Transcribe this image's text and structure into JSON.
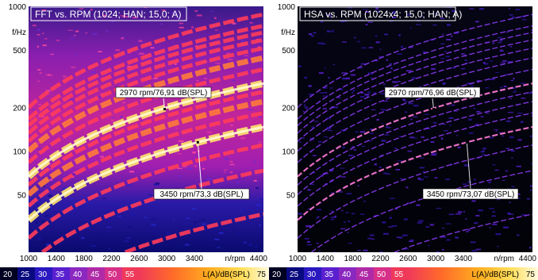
{
  "chart_data": [
    {
      "type": "heatmap",
      "title": "FFT vs. RPM (1024; HAN; 15,0; A)",
      "ylabel": "f/Hz",
      "xlabel": "n/rpm",
      "x_ticks": [
        1000,
        1400,
        1800,
        2200,
        2600,
        3000,
        3400,
        4400
      ],
      "y_ticks": [
        1000,
        500,
        200,
        100,
        50
      ],
      "xlim": [
        1000,
        4400
      ],
      "ylim": [
        20,
        1000
      ],
      "y_scale": "log",
      "annotations": [
        {
          "text": "2970 rpm/76,91 dB(SPL)",
          "x": 2970,
          "y": 195
        },
        {
          "text": "3450 rpm/73,3 dB(SPL)",
          "x": 3450,
          "y": 115
        }
      ],
      "colorbar": {
        "ticks": [
          "20",
          "25",
          "30",
          "35",
          "40",
          "45",
          "50",
          "55"
        ],
        "label": "L(A)/dB(SPL)",
        "last": "75"
      },
      "style": "fft"
    },
    {
      "type": "heatmap",
      "title": "HSA vs. RPM (1024x4; 15,0; HAN; A)",
      "ylabel": "f/Hz",
      "xlabel": "n/rpm",
      "x_ticks": [
        1000,
        1400,
        1800,
        2200,
        2600,
        3000,
        3400,
        4400
      ],
      "y_ticks": [
        1000,
        500,
        200,
        100,
        50
      ],
      "xlim": [
        1000,
        4400
      ],
      "ylim": [
        20,
        1000
      ],
      "y_scale": "log",
      "annotations": [
        {
          "text": "2970 rpm/76,96 dB(SPL)",
          "x": 2970,
          "y": 195
        },
        {
          "text": "3450 rpm/73,07 dB(SPL)",
          "x": 3450,
          "y": 115
        }
      ],
      "colorbar": {
        "ticks": [
          "20",
          "25",
          "30",
          "35",
          "40",
          "45",
          "50",
          "55"
        ],
        "label": "L(A)/dB(SPL)",
        "last": "75"
      },
      "style": "hsa"
    }
  ]
}
